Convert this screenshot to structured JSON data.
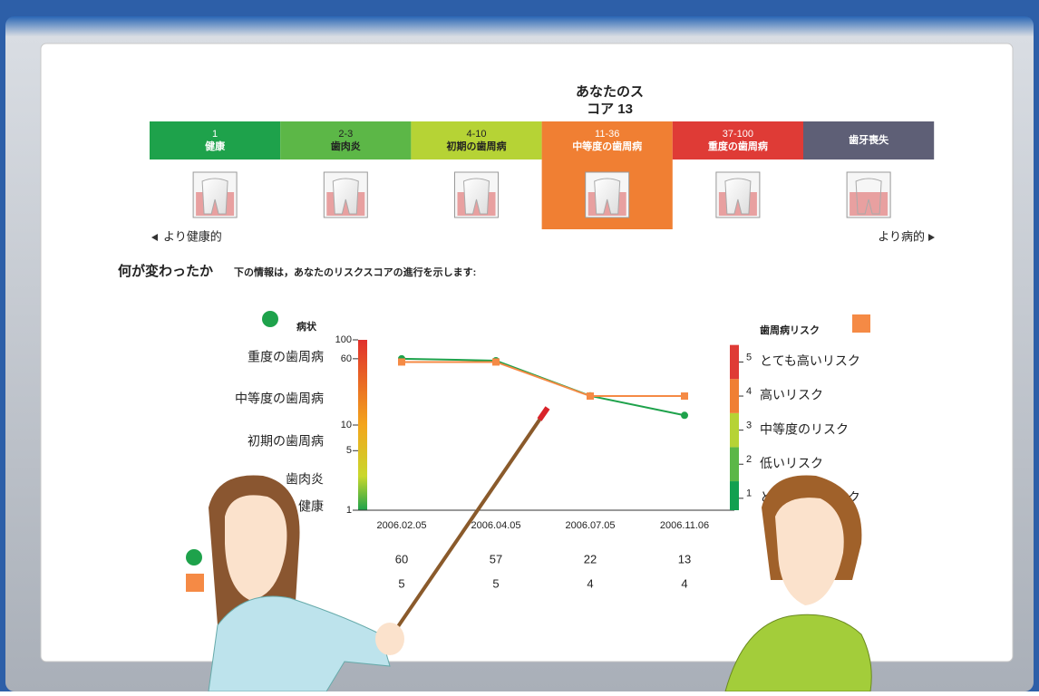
{
  "score_title": "あなたのスコア 13",
  "active_stage": 3,
  "stages": [
    {
      "range": "1",
      "name": "健康",
      "color": "#1ea24b"
    },
    {
      "range": "2-3",
      "name": "歯肉炎",
      "color": "#5cb747"
    },
    {
      "range": "4-10",
      "name": "初期の歯周病",
      "color": "#b6d335"
    },
    {
      "range": "11-36",
      "name": "中等度の歯周病",
      "color": "#f07f33"
    },
    {
      "range": "37-100",
      "name": "重度の歯周病",
      "color": "#df3b36"
    },
    {
      "name": "歯牙喪失",
      "color": "#5e5f76"
    }
  ],
  "nav": {
    "left": "より健康的",
    "right": "より病的"
  },
  "heading": "何が変わったか",
  "subheading": "下の情報は，あなたのリスクスコアの進行を示します:",
  "chart_data": {
    "type": "line",
    "categories": [
      "2006.02.05",
      "2006.04.05",
      "2006.07.05",
      "2006.11.06"
    ],
    "series": [
      {
        "name": "病状",
        "color": "#1ea24b",
        "values": [
          60,
          57,
          22,
          13
        ]
      },
      {
        "name": "歯周病リスク",
        "color": "#f58a45",
        "values": [
          5,
          5,
          4,
          4
        ],
        "axis": "y2"
      }
    ],
    "log_scale": true,
    "ylim": [
      1,
      100
    ],
    "yticks": [
      1,
      5,
      10,
      60,
      100
    ],
    "y_bands": [
      "重度の歯周病",
      "中等度の歯周病",
      "初期の歯周病",
      "歯肉炎",
      "健康"
    ],
    "y2lim": [
      0.65,
      5.65
    ],
    "y2ticks": [
      1,
      2,
      3,
      4,
      5
    ],
    "y2tick_names": [
      "とても低いリスク",
      "低いリスク",
      "中等度のリスク",
      "高いリスク",
      "とても高いリスク"
    ],
    "y2_band_colors": [
      "#12a050",
      "#5cb747",
      "#b6d335",
      "#f07f33",
      "#df3b36"
    ]
  }
}
